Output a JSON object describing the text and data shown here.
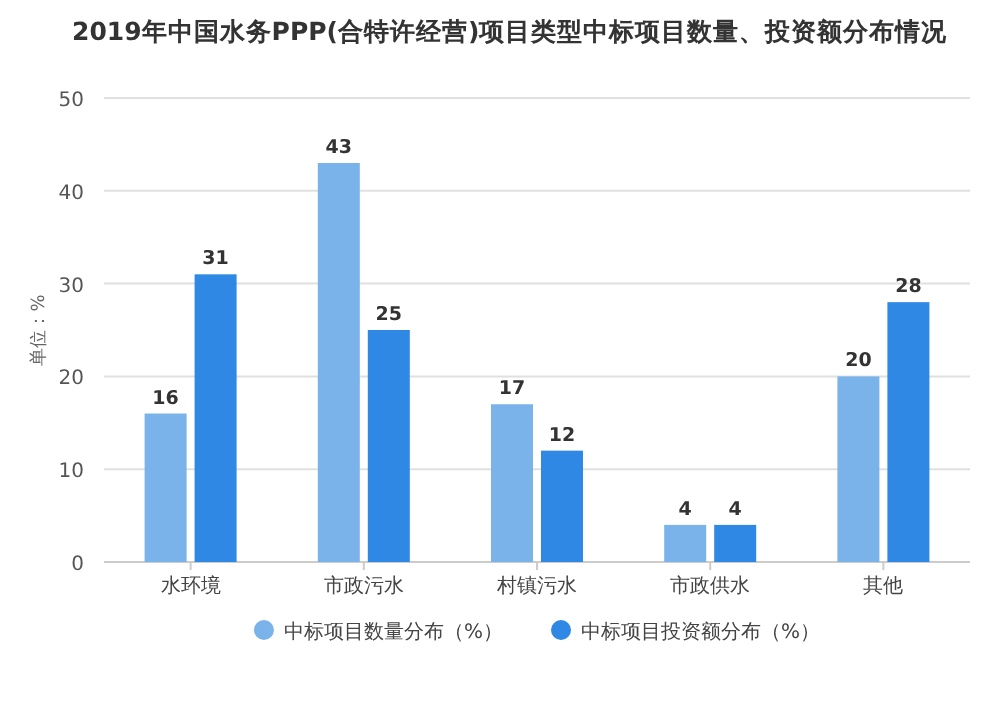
{
  "chart_data": {
    "type": "bar",
    "title": "2019年中国水务PPP(合特许经营)项目类型中标项目数量、投资额分布情况",
    "ylabel": "单位：%",
    "categories": [
      "水环境",
      "市政污水",
      "村镇污水",
      "市政供水",
      "其他"
    ],
    "series": [
      {
        "name": "中标项目数量分布（%）",
        "color": "#7ab3ea",
        "values": [
          16,
          43,
          17,
          4,
          20
        ]
      },
      {
        "name": "中标项目投资额分布（%）",
        "color": "#2e88e4",
        "values": [
          31,
          25,
          12,
          4,
          28
        ]
      }
    ],
    "ylim": [
      0,
      50
    ],
    "yticks": [
      0,
      10,
      20,
      30,
      40,
      50
    ],
    "grid": "y",
    "legend": "bottom",
    "data_labels": true
  }
}
